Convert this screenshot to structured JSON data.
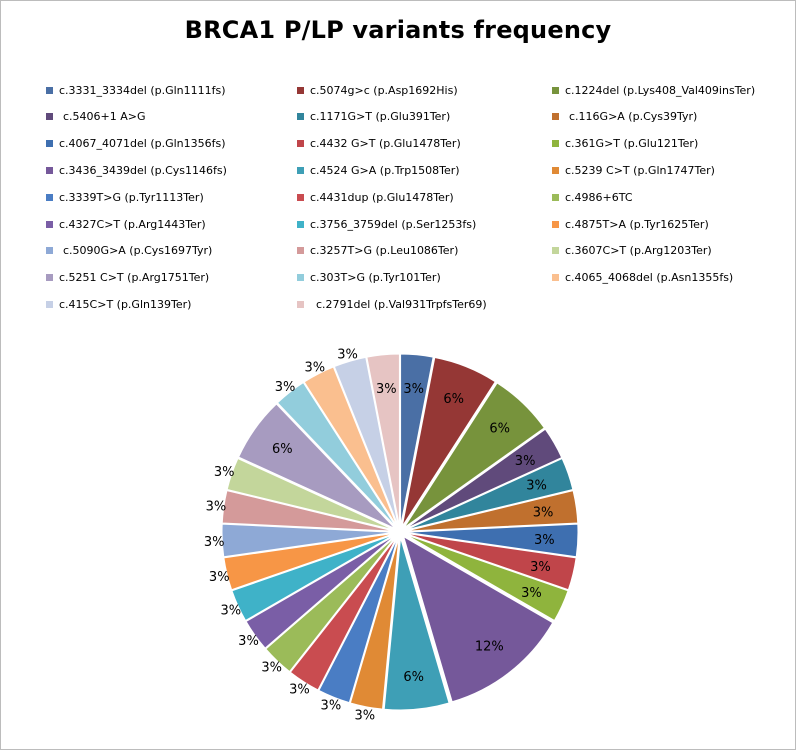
{
  "chart_data": {
    "type": "pie",
    "title": "BRCA1 P/LP variants frequency",
    "legend_position": "top",
    "slices": [
      {
        "label": "c.3331_3334del (p.Gln1111fs)",
        "value": 3,
        "color": "#4a6fa5"
      },
      {
        "label": "c.5074g>c (p.Asp1692His)",
        "value": 6,
        "color": "#953735"
      },
      {
        "label": "c.1224del (p.Lys408_Val409insTer)",
        "value": 6,
        "color": "#77933c"
      },
      {
        "label": "c.5406+1 A>G",
        "value": 3,
        "color": "#604a7b"
      },
      {
        "label": "c.1171G>T (p.Glu391Ter)",
        "value": 3,
        "color": "#31859c"
      },
      {
        "label": "c.116G>A (p.Cys39Tyr)",
        "value": 3,
        "color": "#c0702e"
      },
      {
        "label": "c.4067_4071del (p.Gln1356fs)",
        "value": 3,
        "color": "#3e6fb0"
      },
      {
        "label": "c.4432 G>T (p.Glu1478Ter)",
        "value": 3,
        "color": "#c0454a"
      },
      {
        "label": "c.361G>T (p.Glu121Ter)",
        "value": 3,
        "color": "#8fb43d"
      },
      {
        "label": "c.3436_3439del (p.Cys1146fs)",
        "value": 12,
        "color": "#75589a"
      },
      {
        "label": "c.4524 G>A (p.Trp1508Ter)",
        "value": 6,
        "color": "#3e9fb6"
      },
      {
        "label": "c.5239 C>T (p.Gln1747Ter)",
        "value": 3,
        "color": "#e08a35"
      },
      {
        "label": "c.3339T>G (p.Tyr1113Ter)",
        "value": 3,
        "color": "#4a7dc4"
      },
      {
        "label": "c.4431dup (p.Glu1478Ter)",
        "value": 3,
        "color": "#c94c50"
      },
      {
        "label": "c.4986+6TC",
        "value": 3,
        "color": "#9bbb59"
      },
      {
        "label": "c.4327C>T (p.Arg1443Ter)",
        "value": 3,
        "color": "#7a5ea6"
      },
      {
        "label": "c.3756_3759del (p.Ser1253fs)",
        "value": 3,
        "color": "#3fb2c8"
      },
      {
        "label": "c.4875T>A (p.Tyr1625Ter)",
        "value": 3,
        "color": "#f79646"
      },
      {
        "label": "c.5090G>A (p.Cys1697Tyr)",
        "value": 3,
        "color": "#8ea9d6"
      },
      {
        "label": "c.3257T>G (p.Leu1086Ter)",
        "value": 3,
        "color": "#d49a9a"
      },
      {
        "label": "c.3607C>T (p.Arg1203Ter)",
        "value": 3,
        "color": "#c3d69b"
      },
      {
        "label": "c.5251 C>T (p.Arg1751Ter)",
        "value": 6,
        "color": "#a79bc0"
      },
      {
        "label": "c.303T>G (p.Tyr101Ter)",
        "value": 3,
        "color": "#92cddc"
      },
      {
        "label": "c.4065_4068del (p.Asn1355fs)",
        "value": 3,
        "color": "#fabf8f"
      },
      {
        "label": "c.415C>T (p.Gln139Ter)",
        "value": 3,
        "color": "#c6d0e6"
      },
      {
        "label": "c.2791del (p.Val931TrpfsTer69)",
        "value": 3,
        "color": "#e6c4c3"
      }
    ],
    "value_suffix": "%"
  }
}
